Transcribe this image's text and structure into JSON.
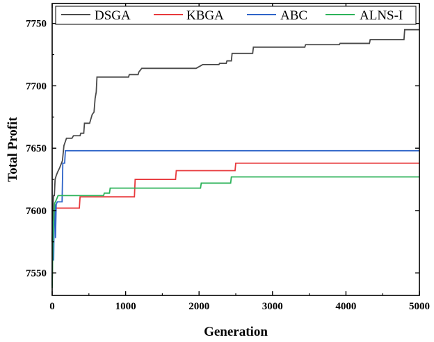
{
  "chart_data": {
    "type": "line",
    "title": "",
    "xlabel": "Generation",
    "ylabel": "Total Profit",
    "xlim": [
      0,
      5000
    ],
    "ylim": [
      7532,
      7766
    ],
    "xticks": [
      0,
      1000,
      2000,
      3000,
      4000,
      5000
    ],
    "yticks": [
      7550,
      7600,
      7650,
      7700,
      7750
    ],
    "xtick_labels": [
      "0",
      "1000",
      "2000",
      "3000",
      "4000",
      "5000"
    ],
    "ytick_labels": [
      "7550",
      "7600",
      "7650",
      "7700",
      "7750"
    ],
    "grid": false,
    "legend_position": "top",
    "series": [
      {
        "name": "DSGA",
        "color": "#4a4a4a",
        "points": [
          [
            0,
            7575
          ],
          [
            10,
            7600
          ],
          [
            18,
            7612
          ],
          [
            30,
            7612
          ],
          [
            40,
            7625
          ],
          [
            55,
            7628
          ],
          [
            75,
            7631
          ],
          [
            100,
            7634
          ],
          [
            140,
            7640
          ],
          [
            160,
            7652
          ],
          [
            195,
            7658
          ],
          [
            270,
            7658
          ],
          [
            290,
            7660
          ],
          [
            380,
            7660
          ],
          [
            390,
            7662
          ],
          [
            430,
            7662
          ],
          [
            440,
            7670
          ],
          [
            510,
            7670
          ],
          [
            525,
            7673
          ],
          [
            545,
            7677
          ],
          [
            570,
            7679
          ],
          [
            585,
            7690
          ],
          [
            600,
            7695
          ],
          [
            610,
            7707
          ],
          [
            1040,
            7707
          ],
          [
            1050,
            7709
          ],
          [
            1170,
            7709
          ],
          [
            1180,
            7711
          ],
          [
            1220,
            7714
          ],
          [
            1960,
            7714
          ],
          [
            2050,
            7717
          ],
          [
            2270,
            7717
          ],
          [
            2280,
            7718
          ],
          [
            2370,
            7718
          ],
          [
            2380,
            7720
          ],
          [
            2440,
            7720
          ],
          [
            2450,
            7726
          ],
          [
            2730,
            7726
          ],
          [
            2740,
            7731
          ],
          [
            3440,
            7731
          ],
          [
            3450,
            7733
          ],
          [
            3910,
            7733
          ],
          [
            3920,
            7734
          ],
          [
            4320,
            7734
          ],
          [
            4330,
            7737
          ],
          [
            4790,
            7737
          ],
          [
            4800,
            7745
          ],
          [
            5000,
            7745
          ]
        ]
      },
      {
        "name": "KBGA",
        "color": "#e8393c",
        "points": [
          [
            0,
            7540
          ],
          [
            10,
            7570
          ],
          [
            20,
            7590
          ],
          [
            30,
            7600
          ],
          [
            50,
            7602
          ],
          [
            370,
            7602
          ],
          [
            380,
            7611
          ],
          [
            1120,
            7611
          ],
          [
            1130,
            7625
          ],
          [
            1680,
            7625
          ],
          [
            1690,
            7632
          ],
          [
            2490,
            7632
          ],
          [
            2500,
            7638
          ],
          [
            5000,
            7638
          ]
        ]
      },
      {
        "name": "ABC",
        "color": "#2e64c8",
        "points": [
          [
            0,
            7540
          ],
          [
            8,
            7585
          ],
          [
            15,
            7592
          ],
          [
            20,
            7560
          ],
          [
            28,
            7598
          ],
          [
            40,
            7605
          ],
          [
            45,
            7578
          ],
          [
            55,
            7605
          ],
          [
            70,
            7607
          ],
          [
            135,
            7607
          ],
          [
            145,
            7638
          ],
          [
            170,
            7638
          ],
          [
            180,
            7648
          ],
          [
            5000,
            7648
          ]
        ]
      },
      {
        "name": "ALNS-I",
        "color": "#2db35a",
        "points": [
          [
            0,
            7538
          ],
          [
            10,
            7575
          ],
          [
            25,
            7598
          ],
          [
            35,
            7606
          ],
          [
            60,
            7609
          ],
          [
            80,
            7612
          ],
          [
            700,
            7612
          ],
          [
            710,
            7614
          ],
          [
            780,
            7614
          ],
          [
            790,
            7618
          ],
          [
            2020,
            7618
          ],
          [
            2030,
            7622
          ],
          [
            2430,
            7622
          ],
          [
            2440,
            7627
          ],
          [
            5000,
            7627
          ]
        ]
      }
    ]
  }
}
